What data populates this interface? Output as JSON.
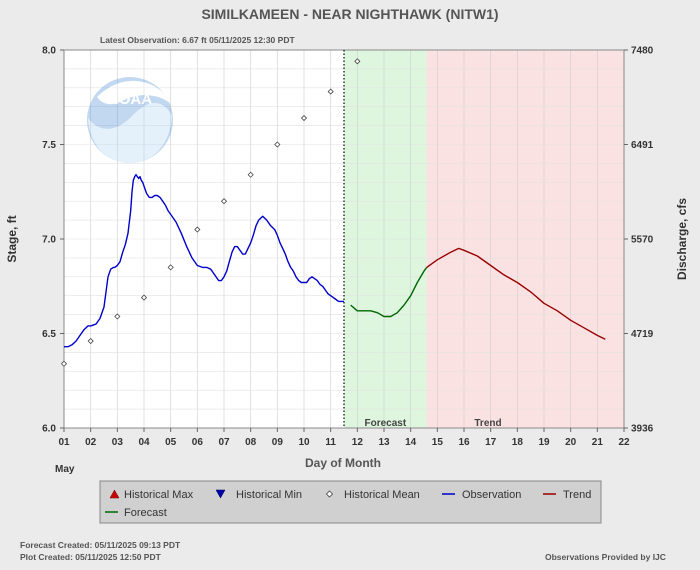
{
  "chart_data": {
    "type": "line",
    "title": "SIMILKAMEEN - NEAR NIGHTHAWK  (NITW1)",
    "subtitle": "Latest Observation: 6.67 ft 05/11/2025 12:30 PDT",
    "xlabel": "Day of Month",
    "ylabel": "Stage, ft",
    "y2label": "Discharge, cfs",
    "month_label": "May",
    "x_tick_labels": [
      "01",
      "02",
      "03",
      "04",
      "05",
      "06",
      "07",
      "08",
      "09",
      "10",
      "11",
      "12",
      "13",
      "14",
      "15",
      "16",
      "17",
      "18",
      "19",
      "20",
      "21",
      "22"
    ],
    "xlim": [
      1,
      22
    ],
    "ylim": [
      6.0,
      8.0
    ],
    "y_ticks": [
      6.0,
      6.5,
      7.0,
      7.5,
      8.0
    ],
    "y_tick_labels": [
      "6.0",
      "6.5",
      "7.0",
      "7.5",
      "8.0"
    ],
    "y2_tick_labels": [
      "3936",
      "4719",
      "5570",
      "6491",
      "7480"
    ],
    "forecast_start": 11.5,
    "trend_start": 14.6,
    "region_labels": {
      "forecast": "Forecast",
      "trend": "Trend"
    },
    "legend_position": "bottom",
    "series": [
      {
        "name": "Observation",
        "color": "#0000cc",
        "x": [
          1.0,
          1.15,
          1.3,
          1.45,
          1.6,
          1.75,
          1.9,
          2.0,
          2.2,
          2.35,
          2.5,
          2.65,
          2.75,
          2.85,
          2.9,
          3.0,
          3.1,
          3.2,
          3.3,
          3.4,
          3.5,
          3.55,
          3.6,
          3.65,
          3.7,
          3.75,
          3.8,
          3.85,
          3.9,
          3.95,
          4.0,
          4.05,
          4.1,
          4.2,
          4.3,
          4.4,
          4.5,
          4.6,
          4.7,
          4.8,
          4.9,
          5.0,
          5.2,
          5.4,
          5.6,
          5.8,
          6.0,
          6.2,
          6.35,
          6.5,
          6.65,
          6.8,
          6.9,
          7.0,
          7.1,
          7.2,
          7.3,
          7.4,
          7.5,
          7.6,
          7.7,
          7.8,
          7.9,
          8.0,
          8.1,
          8.2,
          8.3,
          8.45,
          8.6,
          8.75,
          8.9,
          9.0,
          9.1,
          9.2,
          9.3,
          9.4,
          9.5,
          9.6,
          9.7,
          9.8,
          9.9,
          10.0,
          10.1,
          10.2,
          10.3,
          10.4,
          10.5,
          10.6,
          10.7,
          10.8,
          10.9,
          11.0,
          11.1,
          11.2,
          11.3,
          11.4,
          11.5
        ],
        "y": [
          6.43,
          6.43,
          6.44,
          6.46,
          6.49,
          6.52,
          6.54,
          6.54,
          6.55,
          6.58,
          6.64,
          6.8,
          6.84,
          6.85,
          6.85,
          6.86,
          6.88,
          6.93,
          6.97,
          7.03,
          7.15,
          7.25,
          7.31,
          7.33,
          7.34,
          7.33,
          7.32,
          7.33,
          7.31,
          7.3,
          7.28,
          7.26,
          7.24,
          7.22,
          7.22,
          7.23,
          7.23,
          7.22,
          7.2,
          7.18,
          7.15,
          7.13,
          7.09,
          7.03,
          6.96,
          6.9,
          6.86,
          6.85,
          6.85,
          6.84,
          6.81,
          6.78,
          6.78,
          6.8,
          6.83,
          6.88,
          6.93,
          6.96,
          6.96,
          6.94,
          6.92,
          6.92,
          6.95,
          6.98,
          7.02,
          7.07,
          7.1,
          7.12,
          7.1,
          7.07,
          7.05,
          7.02,
          6.98,
          6.95,
          6.92,
          6.88,
          6.85,
          6.83,
          6.8,
          6.78,
          6.77,
          6.77,
          6.77,
          6.79,
          6.8,
          6.79,
          6.78,
          6.76,
          6.75,
          6.73,
          6.71,
          6.7,
          6.69,
          6.68,
          6.67,
          6.67,
          6.67
        ]
      },
      {
        "name": "Forecast",
        "color": "#006600",
        "x": [
          11.75,
          12.0,
          12.25,
          12.5,
          12.75,
          13.0,
          13.25,
          13.5,
          13.75,
          14.0,
          14.25,
          14.5,
          14.6
        ],
        "y": [
          6.65,
          6.62,
          6.62,
          6.62,
          6.61,
          6.59,
          6.59,
          6.61,
          6.65,
          6.7,
          6.77,
          6.83,
          6.85
        ]
      },
      {
        "name": "Trend",
        "color": "#990000",
        "x": [
          14.6,
          15.0,
          15.5,
          15.8,
          16.0,
          16.5,
          17.0,
          17.5,
          18.0,
          18.5,
          19.0,
          19.5,
          20.0,
          20.5,
          21.0,
          21.3
        ],
        "y": [
          6.85,
          6.89,
          6.93,
          6.95,
          6.94,
          6.91,
          6.86,
          6.81,
          6.77,
          6.72,
          6.66,
          6.62,
          6.57,
          6.53,
          6.49,
          6.47
        ]
      }
    ],
    "historical_mean": {
      "name": "Historical Mean",
      "x": [
        1.0,
        2.0,
        3.0,
        4.0,
        5.0,
        6.0,
        7.0,
        8.0,
        9.0,
        10.0,
        11.0,
        12.0
      ],
      "y": [
        6.34,
        6.46,
        6.59,
        6.69,
        6.85,
        7.05,
        7.2,
        7.34,
        7.5,
        7.64,
        7.78,
        7.94
      ]
    },
    "legend": {
      "historical_max": "Historical Max",
      "historical_min": "Historical Min",
      "historical_mean": "Historical Mean",
      "observation": "Observation",
      "trend": "Trend",
      "forecast": "Forecast"
    },
    "colors": {
      "forecast_band": "#ddf6dd",
      "trend_band": "#fbe2e2",
      "plot_bg": "#ffffff",
      "legend_bg": "#d0d0d0",
      "max_marker": "#cc0000",
      "min_marker": "#0000aa"
    }
  },
  "footer": {
    "forecast_created": "Forecast Created: 05/11/2025 09:13 PDT",
    "plot_created": "Plot Created: 05/11/2025 12:50 PDT",
    "provider": "Observations Provided by IJC"
  }
}
